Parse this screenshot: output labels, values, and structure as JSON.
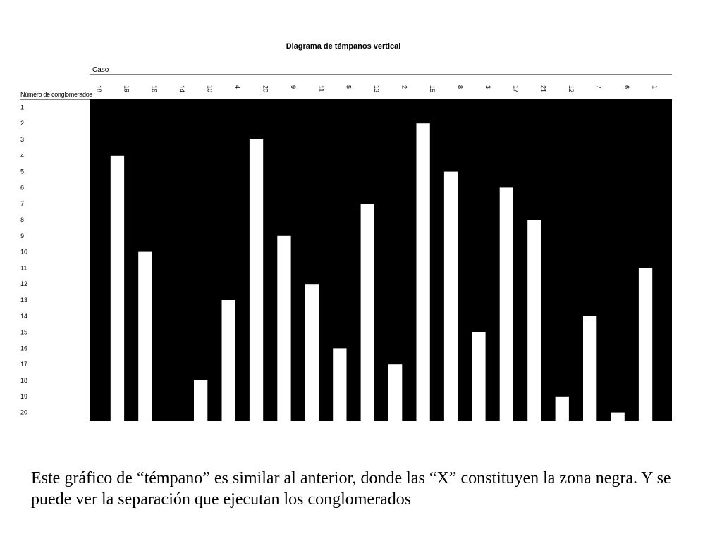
{
  "chart_data": {
    "type": "icicle",
    "title": "Diagrama de témpanos vertical",
    "column_axis_label": "Caso",
    "row_axis_label": "Número de conglomerados",
    "cases": [
      "18",
      "19",
      "16",
      "14",
      "10",
      "4",
      "20",
      "9",
      "11",
      "5",
      "13",
      "2",
      "15",
      "8",
      "3",
      "17",
      "21",
      "12",
      "7",
      "6",
      "1"
    ],
    "cluster_levels": [
      "1",
      "2",
      "3",
      "4",
      "5",
      "6",
      "7",
      "8",
      "9",
      "10",
      "11",
      "12",
      "13",
      "14",
      "15",
      "16",
      "17",
      "18",
      "19",
      "20"
    ],
    "separations": [
      {
        "after_case": "18",
        "separated_from_level": 4
      },
      {
        "after_case": "19",
        "separated_from_level": 10
      },
      {
        "after_case": "14",
        "separated_from_level": 18
      },
      {
        "after_case": "10",
        "separated_from_level": 13
      },
      {
        "after_case": "4",
        "separated_from_level": 3
      },
      {
        "after_case": "20",
        "separated_from_level": 9
      },
      {
        "after_case": "9",
        "separated_from_level": 12
      },
      {
        "after_case": "11",
        "separated_from_level": 16
      },
      {
        "after_case": "5",
        "separated_from_level": 7
      },
      {
        "after_case": "13",
        "separated_from_level": 17
      },
      {
        "after_case": "2",
        "separated_from_level": 2
      },
      {
        "after_case": "15",
        "separated_from_level": 5
      },
      {
        "after_case": "8",
        "separated_from_level": 15
      },
      {
        "after_case": "3",
        "separated_from_level": 6
      },
      {
        "after_case": "17",
        "separated_from_level": 8
      },
      {
        "after_case": "21",
        "separated_from_level": 19
      },
      {
        "after_case": "12",
        "separated_from_level": 14
      },
      {
        "after_case": "7",
        "separated_from_level": 20
      },
      {
        "after_case": "6",
        "separated_from_level": 11
      }
    ],
    "colors": {
      "joined": "#000000",
      "separated": "#ffffff"
    }
  },
  "caption": "Este gráfico de “témpano” es similar al anterior, donde las “X” constituyen la zona negra. Y se puede ver la separación que ejecutan los conglomerados"
}
